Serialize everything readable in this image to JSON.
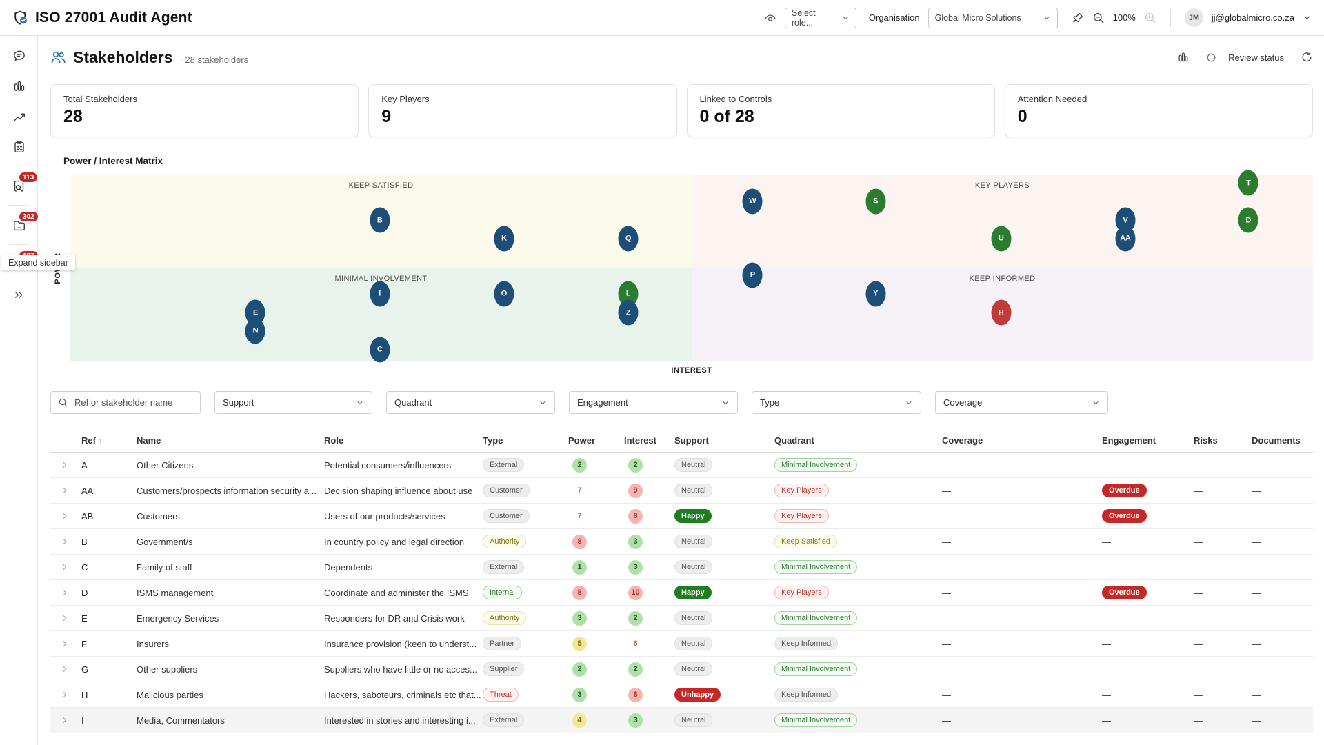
{
  "app": {
    "title": "ISO 27001 Audit Agent"
  },
  "topbar": {
    "role_select": "Select role...",
    "organisation_label": "Organisation",
    "organisation_value": "Global Micro Solutions",
    "zoom_level": "100%",
    "user_initials": "JM",
    "user_email": "jj@globalmicro.co.za"
  },
  "sidebar": {
    "tooltip": "Expand sidebar",
    "items": [
      {
        "icon": "chat-icon",
        "badge": null,
        "divider_after": false
      },
      {
        "icon": "bar-chart-icon",
        "badge": null,
        "divider_after": false
      },
      {
        "icon": "trend-icon",
        "badge": null,
        "divider_after": false
      },
      {
        "icon": "clipboard-icon",
        "badge": null,
        "divider_after": true
      },
      {
        "icon": "search-doc-icon",
        "badge": "113",
        "divider_after": true
      },
      {
        "icon": "folder-icon",
        "badge": "302",
        "divider_after": true
      },
      {
        "icon": "scales-icon",
        "badge": "197",
        "divider_after": true
      }
    ]
  },
  "page": {
    "title": "Stakeholders",
    "subtitle": "· 28 stakeholders",
    "review_status_label": "Review status"
  },
  "cards": [
    {
      "label": "Total Stakeholders",
      "value": "28"
    },
    {
      "label": "Key Players",
      "value": "9"
    },
    {
      "label": "Linked to Controls",
      "value": "0 of 28"
    },
    {
      "label": "Attention Needed",
      "value": "0"
    }
  ],
  "matrix": {
    "title": "Power / Interest Matrix",
    "x_axis": "INTEREST",
    "y_axis": "POWER",
    "colors": {
      "navy": "#1d4e78",
      "green": "#2a7d2e",
      "red": "#c23b3b"
    },
    "quadrants": [
      {
        "label": "KEEP SATISFIED",
        "pos": "tl",
        "bg": "#fcfaeb"
      },
      {
        "label": "KEY PLAYERS",
        "pos": "tr",
        "bg": "#fcf4f0"
      },
      {
        "label": "MINIMAL INVOLVEMENT",
        "pos": "bl",
        "bg": "#e8f3eb"
      },
      {
        "label": "KEEP INFORMED",
        "pos": "br",
        "bg": "#f6f0f7"
      }
    ],
    "bubbles": [
      {
        "label": "T",
        "color": "green",
        "x": 94.8,
        "y": 4.1
      },
      {
        "label": "W",
        "color": "navy",
        "x": 54.9,
        "y": 14.1
      },
      {
        "label": "S",
        "color": "green",
        "x": 64.8,
        "y": 14.1
      },
      {
        "label": "B",
        "color": "navy",
        "x": 24.9,
        "y": 24.2
      },
      {
        "label": "V",
        "color": "navy",
        "x": 84.9,
        "y": 24.2
      },
      {
        "label": "D",
        "color": "green",
        "x": 94.8,
        "y": 24.2
      },
      {
        "label": "K",
        "color": "navy",
        "x": 34.9,
        "y": 34.2
      },
      {
        "label": "Q",
        "color": "navy",
        "x": 44.9,
        "y": 34.2
      },
      {
        "label": "U",
        "color": "green",
        "x": 74.9,
        "y": 34.2
      },
      {
        "label": "AA",
        "color": "navy",
        "x": 84.9,
        "y": 34.2
      },
      {
        "label": "P",
        "color": "navy",
        "x": 54.9,
        "y": 53.9
      },
      {
        "label": "I",
        "color": "navy",
        "x": 24.9,
        "y": 63.9
      },
      {
        "label": "O",
        "color": "navy",
        "x": 34.9,
        "y": 63.9
      },
      {
        "label": "L",
        "color": "green",
        "x": 44.9,
        "y": 63.9
      },
      {
        "label": "Y",
        "color": "navy",
        "x": 64.8,
        "y": 63.9
      },
      {
        "label": "E",
        "color": "navy",
        "x": 14.9,
        "y": 74.0
      },
      {
        "label": "Z",
        "color": "navy",
        "x": 44.9,
        "y": 74.0
      },
      {
        "label": "H",
        "color": "red",
        "x": 74.9,
        "y": 74.0
      },
      {
        "label": "N",
        "color": "navy",
        "x": 14.9,
        "y": 84.0
      },
      {
        "label": "C",
        "color": "navy",
        "x": 24.9,
        "y": 94.0
      }
    ]
  },
  "filters": {
    "search_placeholder": "Ref or stakeholder name",
    "dropdowns": [
      "Support",
      "Quadrant",
      "Engagement",
      "Type",
      "Coverage"
    ]
  },
  "table": {
    "columns": [
      "Ref",
      "Name",
      "Role",
      "Type",
      "Power",
      "Interest",
      "Support",
      "Quadrant",
      "Coverage",
      "Engagement",
      "Risks",
      "Documents"
    ],
    "rows": [
      {
        "ref": "A",
        "name": "Other Citizens",
        "role": "Potential consumers/influencers",
        "type": {
          "label": "External",
          "variant": "gray"
        },
        "power": {
          "value": "2",
          "variant": "green"
        },
        "interest": {
          "value": "2",
          "variant": "green"
        },
        "support": {
          "label": "Neutral",
          "variant": "gray"
        },
        "quadrant": {
          "label": "Minimal Involvement",
          "variant": "green"
        },
        "coverage": "—",
        "engagement": "—",
        "risks": "—",
        "documents": "—",
        "highlight": false
      },
      {
        "ref": "AA",
        "name": "Customers/prospects information security a...",
        "role": "Decision shaping influence about use",
        "type": {
          "label": "Customer",
          "variant": "gray"
        },
        "power": {
          "value": "7",
          "variant": "orange"
        },
        "interest": {
          "value": "9",
          "variant": "red"
        },
        "support": {
          "label": "Neutral",
          "variant": "gray"
        },
        "quadrant": {
          "label": "Key Players",
          "variant": "red"
        },
        "coverage": "—",
        "engagement": {
          "label": "Overdue",
          "variant": "overdue"
        },
        "risks": "—",
        "documents": "—",
        "highlight": false
      },
      {
        "ref": "AB",
        "name": "Customers",
        "role": "Users of our products/services",
        "type": {
          "label": "Customer",
          "variant": "gray"
        },
        "power": {
          "value": "7",
          "variant": "orange"
        },
        "interest": {
          "value": "8",
          "variant": "red"
        },
        "support": {
          "label": "Happy",
          "variant": "happy"
        },
        "quadrant": {
          "label": "Key Players",
          "variant": "red"
        },
        "coverage": "—",
        "engagement": {
          "label": "Overdue",
          "variant": "overdue"
        },
        "risks": "—",
        "documents": "—",
        "highlight": false
      },
      {
        "ref": "B",
        "name": "Government/s",
        "role": "In country policy and legal direction",
        "type": {
          "label": "Authority",
          "variant": "yellow"
        },
        "power": {
          "value": "8",
          "variant": "red"
        },
        "interest": {
          "value": "3",
          "variant": "green"
        },
        "support": {
          "label": "Neutral",
          "variant": "gray"
        },
        "quadrant": {
          "label": "Keep Satisfied",
          "variant": "yellow"
        },
        "coverage": "—",
        "engagement": "—",
        "risks": "—",
        "documents": "—",
        "highlight": false
      },
      {
        "ref": "C",
        "name": "Family of staff",
        "role": "Dependents",
        "type": {
          "label": "External",
          "variant": "gray"
        },
        "power": {
          "value": "1",
          "variant": "green"
        },
        "interest": {
          "value": "3",
          "variant": "green"
        },
        "support": {
          "label": "Neutral",
          "variant": "gray"
        },
        "quadrant": {
          "label": "Minimal Involvement",
          "variant": "green"
        },
        "coverage": "—",
        "engagement": "—",
        "risks": "—",
        "documents": "—",
        "highlight": false
      },
      {
        "ref": "D",
        "name": "ISMS management",
        "role": "Coordinate and administer the ISMS",
        "type": {
          "label": "Internal",
          "variant": "green"
        },
        "power": {
          "value": "8",
          "variant": "red"
        },
        "interest": {
          "value": "10",
          "variant": "red"
        },
        "support": {
          "label": "Happy",
          "variant": "happy"
        },
        "quadrant": {
          "label": "Key Players",
          "variant": "red"
        },
        "coverage": "—",
        "engagement": {
          "label": "Overdue",
          "variant": "overdue"
        },
        "risks": "—",
        "documents": "—",
        "highlight": false
      },
      {
        "ref": "E",
        "name": "Emergency Services",
        "role": "Responders for DR and Crisis work",
        "type": {
          "label": "Authority",
          "variant": "yellow"
        },
        "power": {
          "value": "3",
          "variant": "green"
        },
        "interest": {
          "value": "2",
          "variant": "green"
        },
        "support": {
          "label": "Neutral",
          "variant": "gray"
        },
        "quadrant": {
          "label": "Minimal Involvement",
          "variant": "green"
        },
        "coverage": "—",
        "engagement": "—",
        "risks": "—",
        "documents": "—",
        "highlight": false
      },
      {
        "ref": "F",
        "name": "Insurers",
        "role": "Insurance provision (keen to underst...",
        "type": {
          "label": "Partner",
          "variant": "gray"
        },
        "power": {
          "value": "5",
          "variant": "yellow"
        },
        "interest": {
          "value": "6",
          "variant": "orange"
        },
        "support": {
          "label": "Neutral",
          "variant": "gray"
        },
        "quadrant": {
          "label": "Keep Informed",
          "variant": "gray"
        },
        "coverage": "—",
        "engagement": "—",
        "risks": "—",
        "documents": "—",
        "highlight": false
      },
      {
        "ref": "G",
        "name": "Other suppliers",
        "role": "Suppliers who have little or no acces...",
        "type": {
          "label": "Supplier",
          "variant": "gray"
        },
        "power": {
          "value": "2",
          "variant": "green"
        },
        "interest": {
          "value": "2",
          "variant": "green"
        },
        "support": {
          "label": "Neutral",
          "variant": "gray"
        },
        "quadrant": {
          "label": "Minimal Involvement",
          "variant": "green"
        },
        "coverage": "—",
        "engagement": "—",
        "risks": "—",
        "documents": "—",
        "highlight": false
      },
      {
        "ref": "H",
        "name": "Malicious parties",
        "role": "Hackers, saboteurs, criminals etc that...",
        "type": {
          "label": "Threat",
          "variant": "red"
        },
        "power": {
          "value": "3",
          "variant": "green"
        },
        "interest": {
          "value": "8",
          "variant": "red"
        },
        "support": {
          "label": "Unhappy",
          "variant": "unhappy"
        },
        "quadrant": {
          "label": "Keep Informed",
          "variant": "gray"
        },
        "coverage": "—",
        "engagement": "—",
        "risks": "—",
        "documents": "—",
        "highlight": false
      },
      {
        "ref": "I",
        "name": "Media, Commentators",
        "role": "Interested in stories and interesting i...",
        "type": {
          "label": "External",
          "variant": "gray"
        },
        "power": {
          "value": "4",
          "variant": "yellow"
        },
        "interest": {
          "value": "3",
          "variant": "green"
        },
        "support": {
          "label": "Neutral",
          "variant": "gray"
        },
        "quadrant": {
          "label": "Minimal Involvement",
          "variant": "green"
        },
        "coverage": "—",
        "engagement": "—",
        "risks": "—",
        "documents": "—",
        "highlight": true
      }
    ]
  }
}
